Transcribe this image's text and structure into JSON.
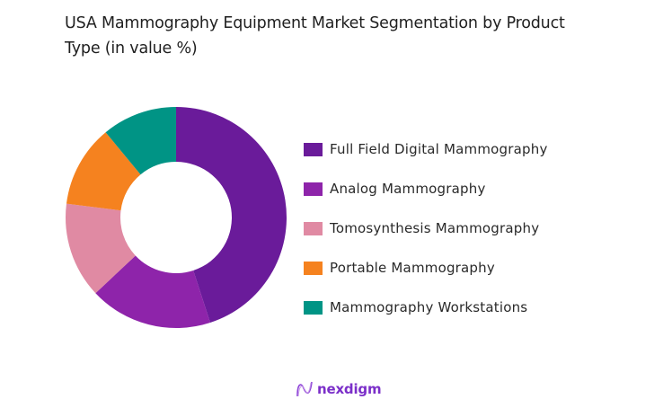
{
  "title": "USA Mammography Equipment Market Segmentation by Product Type (in value %)",
  "chart_data": {
    "type": "pie",
    "subtype": "donut",
    "title": "USA Mammography Equipment Market Segmentation by Product Type (in value %)",
    "categories": [
      "Full Field Digital Mammography",
      "Analog Mammography",
      "Tomosynthesis Mammography",
      "Portable Mammography",
      "Mammography Workstations"
    ],
    "values": [
      45,
      18,
      14,
      12,
      11
    ],
    "colors": [
      "#6a1b9a",
      "#8e24aa",
      "#e08aa3",
      "#f5821f",
      "#009485"
    ],
    "legend_position": "right",
    "start_angle": "top, clockwise"
  },
  "legend": [
    {
      "label": "Full Field Digital Mammography",
      "color": "#6a1b9a"
    },
    {
      "label": "Analog Mammography",
      "color": "#8e24aa"
    },
    {
      "label": "Tomosynthesis Mammography",
      "color": "#e08aa3"
    },
    {
      "label": "Portable Mammography",
      "color": "#f5821f"
    },
    {
      "label": "Mammography Workstations",
      "color": "#009485"
    }
  ],
  "brand": {
    "name": "nexdigm",
    "color": "#7b2fc9"
  }
}
